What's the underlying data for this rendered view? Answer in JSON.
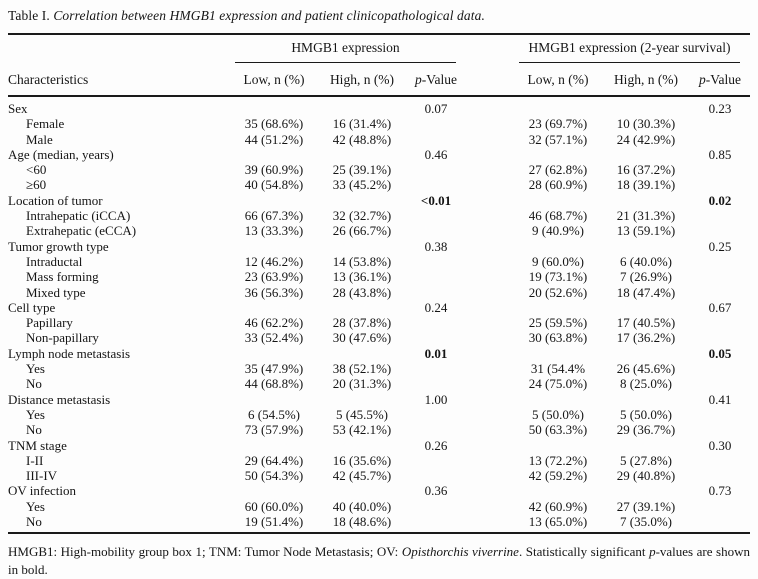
{
  "title": {
    "label": "Table I.",
    "caption": "Correlation between HMGB1 expression and patient clinicopathological data."
  },
  "header": {
    "characteristics": "Characteristics",
    "groups": [
      {
        "label": "HMGB1 expression"
      },
      {
        "label": "HMGB1 expression (2-year survival)"
      }
    ],
    "columns": {
      "low": "Low, n (%)",
      "high": "High, n (%)",
      "p_italic": "p",
      "p_rest": "-Value"
    }
  },
  "rows": [
    {
      "label": "Sex",
      "indent": false,
      "p_bold": false,
      "cells": [
        "",
        "",
        "0.07",
        "",
        "",
        "0.23"
      ]
    },
    {
      "label": "Female",
      "indent": true,
      "p_bold": false,
      "cells": [
        "35 (68.6%)",
        "16 (31.4%)",
        "",
        "23 (69.7%)",
        "10 (30.3%)",
        ""
      ]
    },
    {
      "label": "Male",
      "indent": true,
      "p_bold": false,
      "cells": [
        "44 (51.2%)",
        "42 (48.8%)",
        "",
        "32 (57.1%)",
        "24 (42.9%)",
        ""
      ]
    },
    {
      "label": "Age (median, years)",
      "indent": false,
      "p_bold": false,
      "cells": [
        "",
        "",
        "0.46",
        "",
        "",
        "0.85"
      ]
    },
    {
      "label": "<60",
      "indent": true,
      "p_bold": false,
      "cells": [
        "39 (60.9%)",
        "25 (39.1%)",
        "",
        "27 (62.8%)",
        "16 (37.2%)",
        ""
      ]
    },
    {
      "label": "≥60",
      "indent": true,
      "p_bold": false,
      "cells": [
        "40 (54.8%)",
        "33 (45.2%)",
        "",
        "28 (60.9%)",
        "18 (39.1%)",
        ""
      ]
    },
    {
      "label": "Location of tumor",
      "indent": false,
      "p_bold": true,
      "cells": [
        "",
        "",
        "<0.01",
        "",
        "",
        "0.02"
      ]
    },
    {
      "label": "Intrahepatic (iCCA)",
      "indent": true,
      "p_bold": false,
      "cells": [
        "66 (67.3%)",
        "32 (32.7%)",
        "",
        "46 (68.7%)",
        "21 (31.3%)",
        ""
      ]
    },
    {
      "label": "Extrahepatic (eCCA)",
      "indent": true,
      "p_bold": false,
      "cells": [
        "13 (33.3%)",
        "26 (66.7%)",
        "",
        "9 (40.9%)",
        "13 (59.1%)",
        ""
      ]
    },
    {
      "label": "Tumor growth type",
      "indent": false,
      "p_bold": false,
      "cells": [
        "",
        "",
        "0.38",
        "",
        "",
        "0.25"
      ]
    },
    {
      "label": "Intraductal",
      "indent": true,
      "p_bold": false,
      "cells": [
        "12 (46.2%)",
        "14 (53.8%)",
        "",
        "9 (60.0%)",
        "6 (40.0%)",
        ""
      ]
    },
    {
      "label": "Mass forming",
      "indent": true,
      "p_bold": false,
      "cells": [
        "23 (63.9%)",
        "13 (36.1%)",
        "",
        "19 (73.1%)",
        "7 (26.9%)",
        ""
      ]
    },
    {
      "label": "Mixed type",
      "indent": true,
      "p_bold": false,
      "cells": [
        "36 (56.3%)",
        "28 (43.8%)",
        "",
        "20 (52.6%)",
        "18 (47.4%)",
        ""
      ]
    },
    {
      "label": "Cell type",
      "indent": false,
      "p_bold": false,
      "cells": [
        "",
        "",
        "0.24",
        "",
        "",
        "0.67"
      ]
    },
    {
      "label": "Papillary",
      "indent": true,
      "p_bold": false,
      "cells": [
        "46 (62.2%)",
        "28 (37.8%)",
        "",
        "25 (59.5%)",
        "17 (40.5%)",
        ""
      ]
    },
    {
      "label": "Non-papillary",
      "indent": true,
      "p_bold": false,
      "cells": [
        "33 (52.4%)",
        "30 (47.6%)",
        "",
        "30 (63.8%)",
        "17 (36.2%)",
        ""
      ]
    },
    {
      "label": "Lymph node metastasis",
      "indent": false,
      "p_bold": true,
      "cells": [
        "",
        "",
        "0.01",
        "",
        "",
        "0.05"
      ]
    },
    {
      "label": "Yes",
      "indent": true,
      "p_bold": false,
      "cells": [
        "35 (47.9%)",
        "38 (52.1%)",
        "",
        "31 (54.4%",
        "26 (45.6%)",
        ""
      ]
    },
    {
      "label": "No",
      "indent": true,
      "p_bold": false,
      "cells": [
        "44 (68.8%)",
        "20 (31.3%)",
        "",
        "24 (75.0%)",
        "8 (25.0%)",
        ""
      ]
    },
    {
      "label": "Distance metastasis",
      "indent": false,
      "p_bold": false,
      "cells": [
        "",
        "",
        "1.00",
        "",
        "",
        "0.41"
      ]
    },
    {
      "label": "Yes",
      "indent": true,
      "p_bold": false,
      "cells": [
        "6 (54.5%)",
        "5 (45.5%)",
        "",
        "5 (50.0%)",
        "5 (50.0%)",
        ""
      ]
    },
    {
      "label": "No",
      "indent": true,
      "p_bold": false,
      "cells": [
        "73 (57.9%)",
        "53 (42.1%)",
        "",
        "50 (63.3%)",
        "29 (36.7%)",
        ""
      ]
    },
    {
      "label": "TNM stage",
      "indent": false,
      "p_bold": false,
      "cells": [
        "",
        "",
        "0.26",
        "",
        "",
        "0.30"
      ]
    },
    {
      "label": "I-II",
      "indent": true,
      "p_bold": false,
      "cells": [
        "29 (64.4%)",
        "16 (35.6%)",
        "",
        "13 (72.2%)",
        "5 (27.8%)",
        ""
      ]
    },
    {
      "label": "III-IV",
      "indent": true,
      "p_bold": false,
      "cells": [
        "50 (54.3%)",
        "42 (45.7%)",
        "",
        "42 (59.2%)",
        "29 (40.8%)",
        ""
      ]
    },
    {
      "label": "OV infection",
      "indent": false,
      "p_bold": false,
      "cells": [
        "",
        "",
        "0.36",
        "",
        "",
        "0.73"
      ]
    },
    {
      "label": "Yes",
      "indent": true,
      "p_bold": false,
      "cells": [
        "60 (60.0%)",
        "40 (40.0%)",
        "",
        "42 (60.9%)",
        "27 (39.1%)",
        ""
      ]
    },
    {
      "label": "No",
      "indent": true,
      "p_bold": false,
      "cells": [
        "19 (51.4%)",
        "18 (48.6%)",
        "",
        "13 (65.0%)",
        "7 (35.0%)",
        ""
      ]
    }
  ],
  "footnote": [
    {
      "t": "HMGB1: High-mobility group box 1; TNM: Tumor Node Metastasis; OV: ",
      "i": false
    },
    {
      "t": "Opisthorchis viverrine",
      "i": true
    },
    {
      "t": ". Statistically significant ",
      "i": false
    },
    {
      "t": "p",
      "i": true
    },
    {
      "t": "-values are shown in bold.",
      "i": false
    }
  ]
}
